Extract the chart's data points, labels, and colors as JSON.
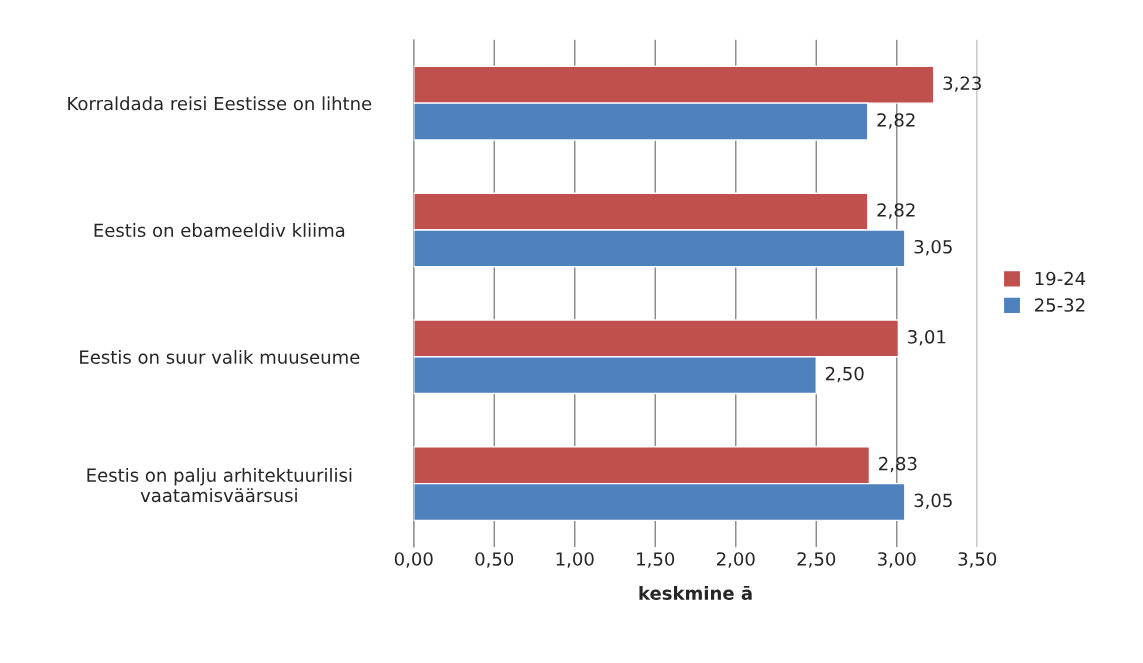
{
  "chart_data": {
    "type": "bar",
    "orientation": "horizontal",
    "xlabel": "keskmine ā",
    "categories": [
      "Korraldada reisi Eestisse on lihtne",
      "Eestis on ebameeldiv kliima",
      "Eestis on suur valik muuseume",
      "Eestis on palju arhitektuurilisi\nvaatamisväärsusi"
    ],
    "series": [
      {
        "name": "19-24",
        "color": "#c0504d",
        "values": [
          3.23,
          2.82,
          3.01,
          2.83
        ],
        "value_labels": [
          "3,23",
          "2,82",
          "3,01",
          "2,83"
        ]
      },
      {
        "name": "25-32",
        "color": "#4f81bd",
        "values": [
          2.82,
          3.05,
          2.5,
          3.05
        ],
        "value_labels": [
          "2,82",
          "3,05",
          "2,50",
          "3,05"
        ]
      }
    ],
    "xlim": [
      0,
      3.5
    ],
    "xticks": [
      {
        "value": 0,
        "label": "0,00"
      },
      {
        "value": 0.5,
        "label": "0,50"
      },
      {
        "value": 1,
        "label": "1,00"
      },
      {
        "value": 1.5,
        "label": "1,50"
      },
      {
        "value": 2,
        "label": "2,00"
      },
      {
        "value": 2.5,
        "label": "2,50"
      },
      {
        "value": 3,
        "label": "3,00"
      },
      {
        "value": 3.5,
        "label": "3,50"
      }
    ],
    "grid": "x",
    "legend": "right"
  }
}
